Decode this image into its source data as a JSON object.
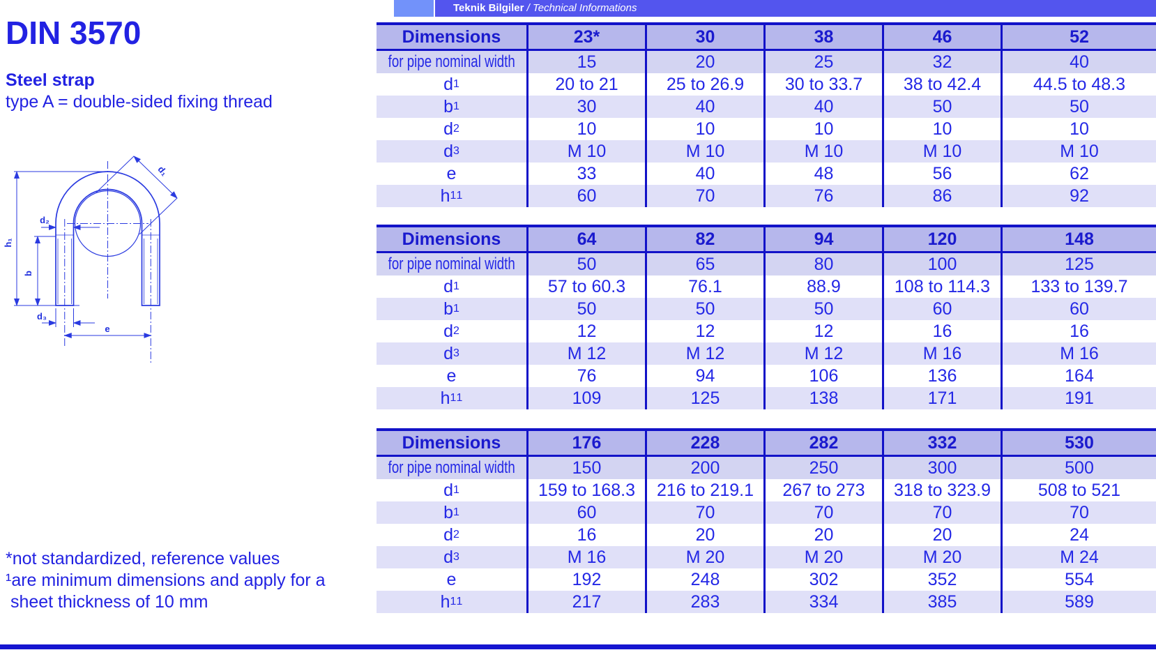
{
  "header_bar": {
    "title_tr": "Teknik Bilgiler",
    "separator": " / ",
    "title_en": "Technical Informations"
  },
  "page": {
    "title": "DIN 3570",
    "product": "Steel strap",
    "type_line": "type A = double-sided fixing thread",
    "footnote1": "*not standardized, reference values",
    "footnote2": "¹are minimum dimensions and apply for a",
    "footnote3": " sheet thickness of 10 mm"
  },
  "diagram": {
    "labels": {
      "h1": "h₁",
      "b": "b",
      "d1": "d₁",
      "d2": "d₂",
      "d3": "d₃",
      "e": "e"
    }
  },
  "colors": {
    "accent_text": "#2222e2",
    "table_border": "#1212c8",
    "header_row_bg": "#b6b7ec",
    "shade_a": "#d3d4f2",
    "shade_b": "#e0e0f8",
    "bar_bg": "#5355ee",
    "bar_square_bg": "#7292fa"
  },
  "tables": [
    {
      "header": [
        "Dimensions",
        "23*",
        "30",
        "38",
        "46",
        "52"
      ],
      "rows": [
        {
          "label": {
            "text": "for pipe nominal width",
            "condensed": true
          },
          "values": [
            "15",
            "20",
            "25",
            "32",
            "40"
          ]
        },
        {
          "label": {
            "text": "d",
            "sub": "1"
          },
          "values": [
            "20 to 21",
            "25 to 26.9",
            "30 to 33.7",
            "38 to 42.4",
            "44.5 to 48.3"
          ]
        },
        {
          "label": {
            "text": "b",
            "sup": "1"
          },
          "values": [
            "30",
            "40",
            "40",
            "50",
            "50"
          ]
        },
        {
          "label": {
            "text": "d",
            "sub": "2"
          },
          "values": [
            "10",
            "10",
            "10",
            "10",
            "10"
          ]
        },
        {
          "label": {
            "text": "d",
            "sub": "3"
          },
          "values": [
            "M 10",
            "M 10",
            "M 10",
            "M 10",
            "M 10"
          ]
        },
        {
          "label": {
            "text": "e"
          },
          "values": [
            "33",
            "40",
            "48",
            "56",
            "62"
          ]
        },
        {
          "label": {
            "text": "h",
            "sub": "1",
            "sup": "1"
          },
          "values": [
            "60",
            "70",
            "76",
            "86",
            "92"
          ]
        }
      ]
    },
    {
      "header": [
        "Dimensions",
        "64",
        "82",
        "94",
        "120",
        "148"
      ],
      "rows": [
        {
          "label": {
            "text": "for pipe nominal width",
            "condensed": true
          },
          "values": [
            "50",
            "65",
            "80",
            "100",
            "125"
          ]
        },
        {
          "label": {
            "text": "d",
            "sub": "1"
          },
          "values": [
            "57 to 60.3",
            "76.1",
            "88.9",
            "108 to 114.3",
            "133 to 139.7"
          ]
        },
        {
          "label": {
            "text": "b",
            "sup": "1"
          },
          "values": [
            "50",
            "50",
            "50",
            "60",
            "60"
          ]
        },
        {
          "label": {
            "text": "d",
            "sub": "2"
          },
          "values": [
            "12",
            "12",
            "12",
            "16",
            "16"
          ]
        },
        {
          "label": {
            "text": "d",
            "sub": "3"
          },
          "values": [
            "M 12",
            "M 12",
            "M 12",
            "M 16",
            "M 16"
          ]
        },
        {
          "label": {
            "text": "e"
          },
          "values": [
            "76",
            "94",
            "106",
            "136",
            "164"
          ]
        },
        {
          "label": {
            "text": "h",
            "sub": "1",
            "sup": "1"
          },
          "values": [
            "109",
            "125",
            "138",
            "171",
            "191"
          ]
        }
      ]
    },
    {
      "header": [
        "Dimensions",
        "176",
        "228",
        "282",
        "332",
        "530"
      ],
      "rows": [
        {
          "label": {
            "text": "for pipe nominal width",
            "condensed": true
          },
          "values": [
            "150",
            "200",
            "250",
            "300",
            "500"
          ]
        },
        {
          "label": {
            "text": "d",
            "sub": "1"
          },
          "values": [
            "159 to 168.3",
            "216 to 219.1",
            "267 to 273",
            "318 to 323.9",
            "508 to 521"
          ]
        },
        {
          "label": {
            "text": "b",
            "sup": "1"
          },
          "values": [
            "60",
            "70",
            "70",
            "70",
            "70"
          ]
        },
        {
          "label": {
            "text": "d",
            "sub": "2"
          },
          "values": [
            "16",
            "20",
            "20",
            "20",
            "24"
          ]
        },
        {
          "label": {
            "text": "d",
            "sub": "3"
          },
          "values": [
            "M 16",
            "M 20",
            "M 20",
            "M 20",
            "M 24"
          ]
        },
        {
          "label": {
            "text": "e"
          },
          "values": [
            "192",
            "248",
            "302",
            "352",
            "554"
          ]
        },
        {
          "label": {
            "text": "h",
            "sub": "1",
            "sup": "1"
          },
          "values": [
            "217",
            "283",
            "334",
            "385",
            "589"
          ]
        }
      ]
    }
  ]
}
